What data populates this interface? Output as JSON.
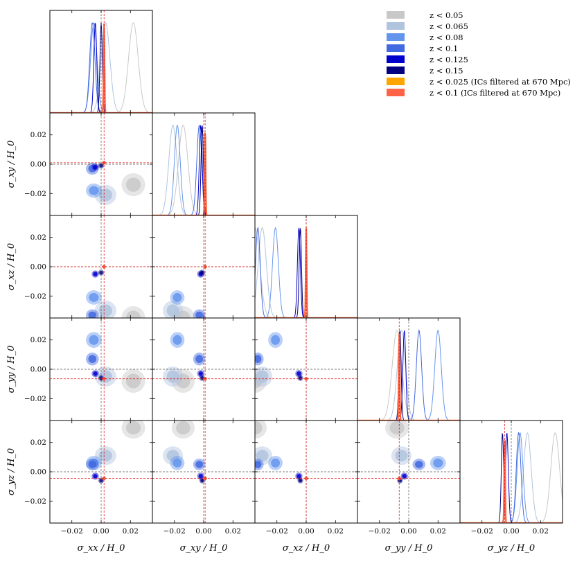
{
  "chart_data": {
    "type": "corner",
    "parameters": [
      "σxx/H0",
      "σxy/H0",
      "σxz/H0",
      "σyy/H0",
      "σyz/H0"
    ],
    "axis_labels": [
      "σ_xx / H_0",
      "σ_xy / H_0",
      "σ_xz / H_0",
      "σ_yy / H_0",
      "σ_yz / H_0"
    ],
    "range": [
      -0.035,
      0.035
    ],
    "ticks": [
      -0.02,
      0.0,
      0.02
    ],
    "tick_labels": [
      "−0.02",
      "0.00",
      "0.02"
    ],
    "reference_lines": {
      "black": {
        "color": "#555555",
        "values": [
          0.0,
          0.0,
          0.0,
          0.0,
          0.0
        ]
      },
      "red": {
        "color": "#e8191c",
        "values": [
          0.002,
          0.001,
          0.0,
          -0.0065,
          -0.0045
        ]
      }
    },
    "series": [
      {
        "name": "z < 0.05",
        "label": "z < 0.05",
        "color": "#c8c8c8",
        "mean": [
          0.022,
          -0.014,
          -0.035,
          -0.008,
          0.03
        ],
        "sigma": [
          0.0033,
          0.0032,
          0.0033,
          0.0033,
          0.003
        ]
      },
      {
        "name": "z < 0.065",
        "label": "z < 0.065",
        "color": "#b0c4de",
        "mean": [
          0.003,
          -0.021,
          -0.03,
          -0.005,
          0.011
        ],
        "sigma": [
          0.003,
          0.0028,
          0.0028,
          0.0028,
          0.0026
        ]
      },
      {
        "name": "z < 0.08",
        "label": "z < 0.08",
        "color": "#6495ed",
        "mean": [
          -0.005,
          -0.018,
          -0.021,
          0.02,
          0.006
        ],
        "sigma": [
          0.0022,
          0.002,
          0.002,
          0.0022,
          0.002
        ]
      },
      {
        "name": "z < 0.1",
        "label": "z < 0.1",
        "color": "#4169e1",
        "mean": [
          -0.006,
          -0.003,
          -0.033,
          0.007,
          0.005
        ],
        "sigma": [
          0.0018,
          0.0017,
          0.0016,
          0.0018,
          0.0016
        ]
      },
      {
        "name": "z < 0.125",
        "label": "z < 0.125",
        "color": "#0000cd",
        "mean": [
          -0.004,
          -0.002,
          -0.005,
          -0.003,
          -0.003
        ],
        "sigma": [
          0.001,
          0.001,
          0.001,
          0.001,
          0.001
        ]
      },
      {
        "name": "z < 0.15",
        "label": "z < 0.15",
        "color": "#000080",
        "mean": [
          0.0,
          -0.001,
          -0.004,
          -0.006,
          -0.006
        ],
        "sigma": [
          0.0008,
          0.0008,
          0.0008,
          0.0008,
          0.0008
        ]
      },
      {
        "name": "z < 0.025 (ICs filtered at 670 Mpc)",
        "label": "z < 0.025 (ICs filtered at 670 Mpc)",
        "color": "#ffa500",
        "mean": [
          0.002,
          0.001,
          0.0,
          -0.0065,
          -0.0045
        ],
        "sigma": [
          0.0003,
          0.0003,
          0.0003,
          0.0003,
          0.0003
        ]
      },
      {
        "name": "z < 0.1 (ICs filtered at 670 Mpc)",
        "label": "z < 0.1 (ICs filtered at 670 Mpc)",
        "color": "#ff6347",
        "mean": [
          0.002,
          0.001,
          0.0,
          -0.0065,
          -0.0045
        ],
        "sigma": [
          0.0003,
          0.0003,
          0.0003,
          0.0003,
          0.0003
        ]
      }
    ]
  }
}
